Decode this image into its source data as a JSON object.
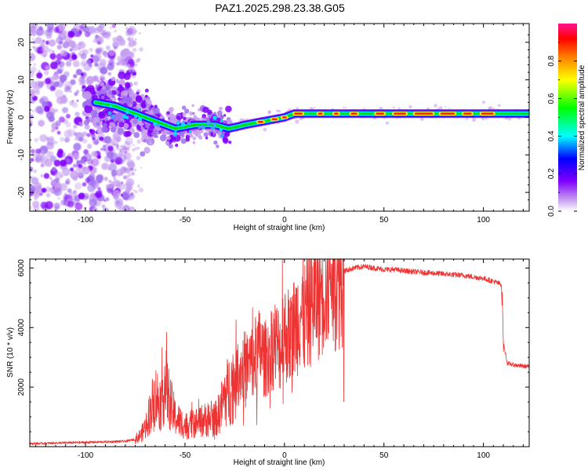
{
  "title": "PAZ1.2025.298.23.38.G05",
  "chart_data": [
    {
      "type": "heatmap",
      "name": "spectrogram",
      "xlabel": "Height of straight line (km)",
      "ylabel": "Frequency (Hz)",
      "xlim": [
        -128,
        123
      ],
      "ylim": [
        -25,
        25
      ],
      "xticks": [
        -100,
        -50,
        0,
        50,
        100
      ],
      "yticks": [
        -20,
        -10,
        0,
        10,
        20
      ],
      "colorbar": {
        "label": "Normalized spectral amplitude",
        "range": [
          0,
          1
        ],
        "ticks": [
          0.0,
          0.2,
          0.4,
          0.6,
          0.8
        ],
        "tick_labels": [
          "0.0",
          "0.2",
          "0.4",
          "0.6",
          "0.8"
        ],
        "colormap": [
          "#c8a0f0",
          "#8000ff",
          "#0000ff",
          "#00ffff",
          "#00ff00",
          "#ffff00",
          "#ff8000",
          "#ff0000",
          "#ff1493"
        ]
      },
      "dominant_track": {
        "x": [
          -95,
          -85,
          -75,
          -65,
          -55,
          -45,
          -35,
          -28,
          -20,
          -10,
          0,
          5,
          10,
          20,
          40,
          60,
          80,
          100,
          123
        ],
        "y": [
          4,
          3,
          1,
          -1,
          -3,
          -2,
          -2,
          -3,
          -2,
          -1,
          0,
          1,
          1,
          1,
          1,
          1,
          1,
          1,
          1
        ]
      }
    },
    {
      "type": "line",
      "name": "snr",
      "xlabel": "Height of straight line (km)",
      "ylabel": "SNR (10 * v/v)",
      "xlim": [
        -128,
        123
      ],
      "ylim": [
        0,
        6300
      ],
      "xticks": [
        -100,
        -50,
        0,
        50,
        100
      ],
      "yticks": [
        2000,
        4000,
        6000
      ],
      "series": [
        {
          "name": "SNR",
          "color": "#ee3333",
          "x": [
            -128,
            -110,
            -90,
            -80,
            -75,
            -72,
            -70,
            -67,
            -65,
            -62,
            -60,
            -58,
            -55,
            -50,
            -45,
            -40,
            -35,
            -33,
            -30,
            -27,
            -25,
            -22,
            -20,
            -17,
            -15,
            -12,
            -10,
            -7,
            -5,
            -2,
            0,
            3,
            5,
            8,
            10,
            13,
            15,
            18,
            20,
            25,
            30,
            35,
            40,
            45,
            50,
            55,
            60,
            70,
            80,
            90,
            100,
            105,
            109,
            110,
            112,
            115,
            120,
            123
          ],
          "y": [
            100,
            130,
            160,
            180,
            250,
            400,
            650,
            1300,
            1700,
            1500,
            2200,
            1600,
            1000,
            700,
            800,
            900,
            900,
            1100,
            1700,
            2000,
            2300,
            2600,
            2700,
            2800,
            3000,
            3300,
            2900,
            3300,
            3500,
            3300,
            3800,
            3700,
            4000,
            4600,
            4300,
            4800,
            5000,
            5300,
            5600,
            5800,
            5900,
            6000,
            6050,
            6000,
            5950,
            5950,
            5900,
            5850,
            5800,
            5750,
            5650,
            5550,
            5450,
            3500,
            2800,
            2750,
            2700,
            2700
          ]
        }
      ]
    }
  ]
}
